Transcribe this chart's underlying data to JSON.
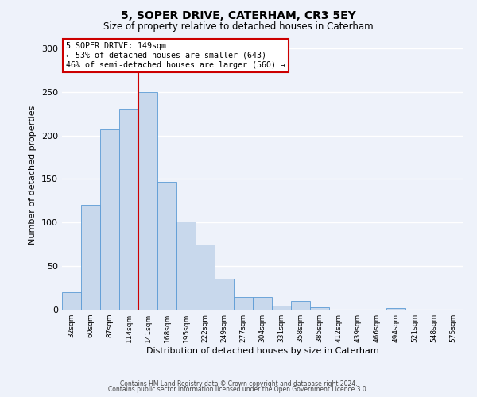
{
  "title": "5, SOPER DRIVE, CATERHAM, CR3 5EY",
  "subtitle": "Size of property relative to detached houses in Caterham",
  "xlabel": "Distribution of detached houses by size in Caterham",
  "ylabel": "Number of detached properties",
  "bar_values": [
    20,
    120,
    207,
    231,
    250,
    147,
    101,
    75,
    36,
    15,
    15,
    5,
    10,
    3,
    0,
    0,
    0,
    2,
    0,
    0,
    0
  ],
  "bin_labels": [
    "32sqm",
    "60sqm",
    "87sqm",
    "114sqm",
    "141sqm",
    "168sqm",
    "195sqm",
    "222sqm",
    "249sqm",
    "277sqm",
    "304sqm",
    "331sqm",
    "358sqm",
    "385sqm",
    "412sqm",
    "439sqm",
    "466sqm",
    "494sqm",
    "521sqm",
    "548sqm",
    "575sqm"
  ],
  "bar_color": "#c8d8ec",
  "bar_edge_color": "#5b9bd5",
  "vline_x_index": 4,
  "vline_color": "#cc0000",
  "annotation_title": "5 SOPER DRIVE: 149sqm",
  "annotation_line1": "← 53% of detached houses are smaller (643)",
  "annotation_line2": "46% of semi-detached houses are larger (560) →",
  "annotation_box_color": "#cc0000",
  "ylim": [
    0,
    310
  ],
  "yticks": [
    0,
    50,
    100,
    150,
    200,
    250,
    300
  ],
  "footer1": "Contains HM Land Registry data © Crown copyright and database right 2024.",
  "footer2": "Contains public sector information licensed under the Open Government Licence 3.0.",
  "background_color": "#eef2fa",
  "grid_color": "#ffffff"
}
